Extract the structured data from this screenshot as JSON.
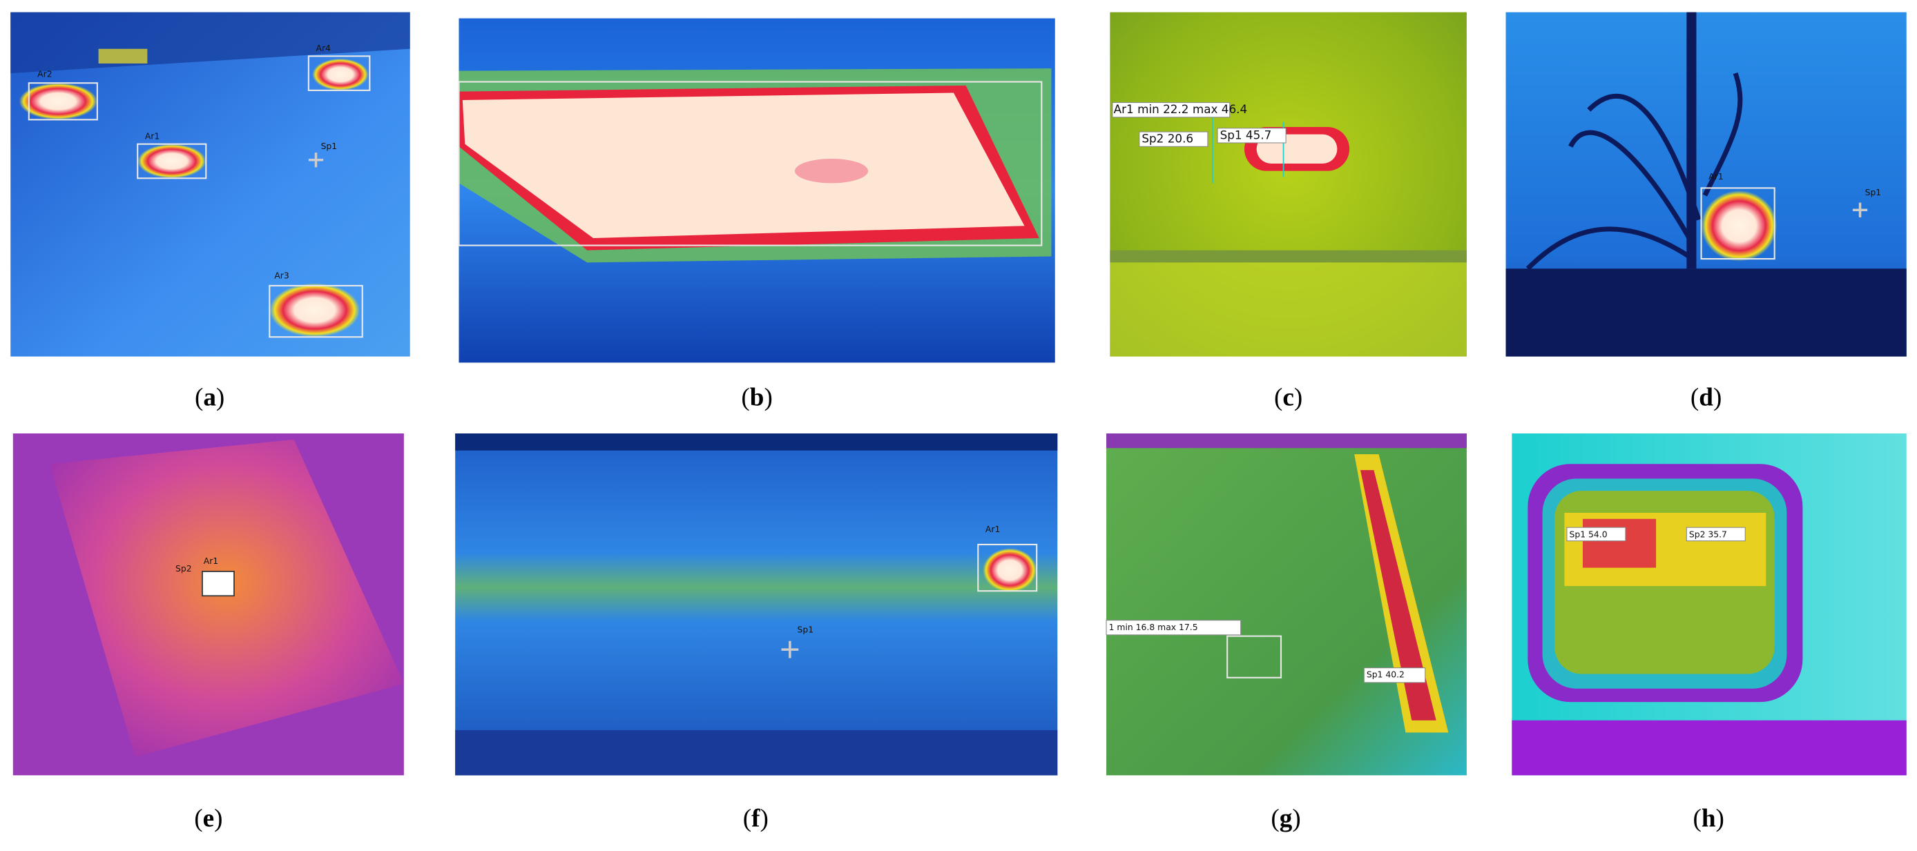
{
  "panels": [
    {
      "label": "(a)",
      "annotations": [
        "Ar2",
        "Ar4",
        "Ar1",
        "Sp1",
        "Ar3"
      ]
    },
    {
      "label": "(b)",
      "annotations": []
    },
    {
      "label": "(c)",
      "annotations": [
        "Ar1 min 22.2 max 46.4",
        "Sp2 20.6",
        "Sp1 45.7"
      ]
    },
    {
      "label": "(d)",
      "annotations": [
        "Ar1",
        "Sp1"
      ]
    },
    {
      "label": "(e)",
      "annotations": [
        "Sp2",
        "Ar1"
      ]
    },
    {
      "label": "(f)",
      "annotations": [
        "Ar1",
        "Sp1"
      ]
    },
    {
      "label": "(g)",
      "annotations": [
        "1 min 16.8 max 17.5",
        "Sp1 40.2"
      ]
    },
    {
      "label": "(h)",
      "annotations": [
        "Sp1 54.0",
        "Sp2 35.7"
      ]
    }
  ]
}
